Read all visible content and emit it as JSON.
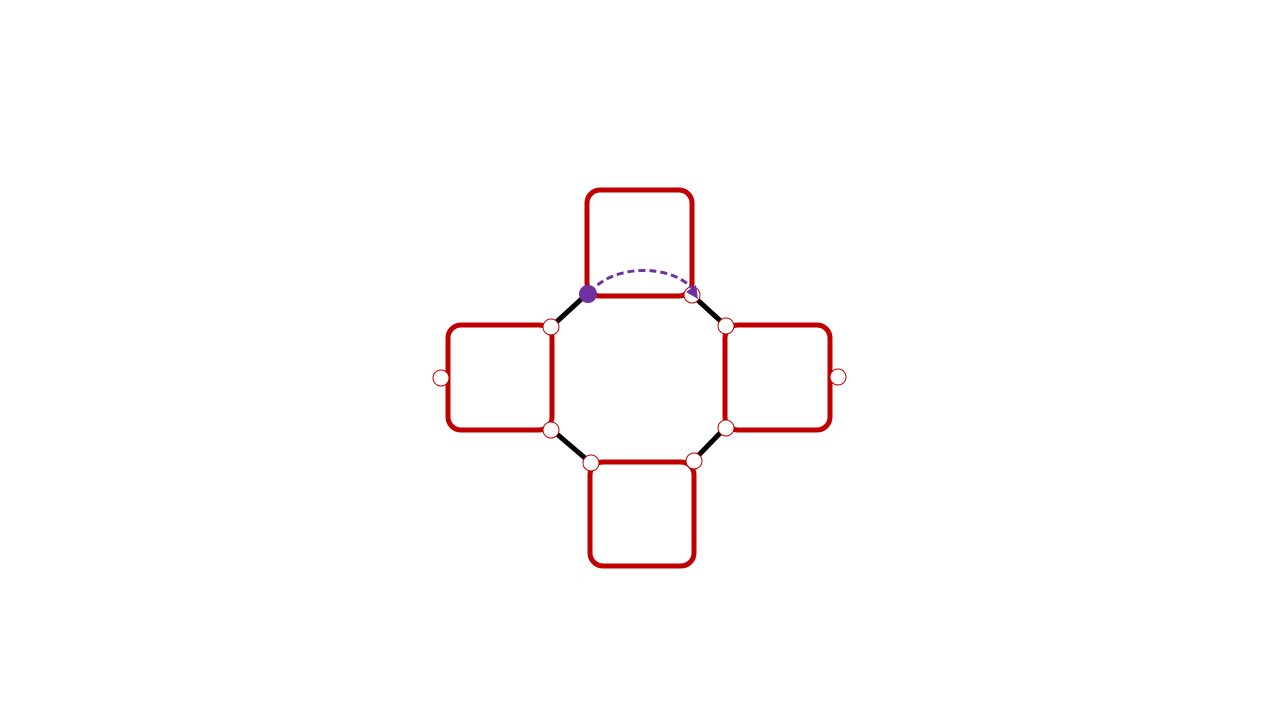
{
  "diagram": {
    "nodes": [
      {
        "id": "top"
      },
      {
        "id": "left"
      },
      {
        "id": "right"
      },
      {
        "id": "bottom"
      }
    ],
    "edges": [
      {
        "from": "top",
        "to": "left"
      },
      {
        "from": "top",
        "to": "right"
      },
      {
        "from": "left",
        "to": "bottom"
      },
      {
        "from": "right",
        "to": "bottom"
      }
    ],
    "drag_action": {
      "from_node": "top",
      "to_node": "top",
      "style": "dashed-arc"
    }
  },
  "colors": {
    "node_border": "#c00000",
    "edge": "#000000",
    "port_border": "#c00000",
    "drag_handle": "#7030a0",
    "drag_path": "#7030a0",
    "background": "#ffffff"
  }
}
